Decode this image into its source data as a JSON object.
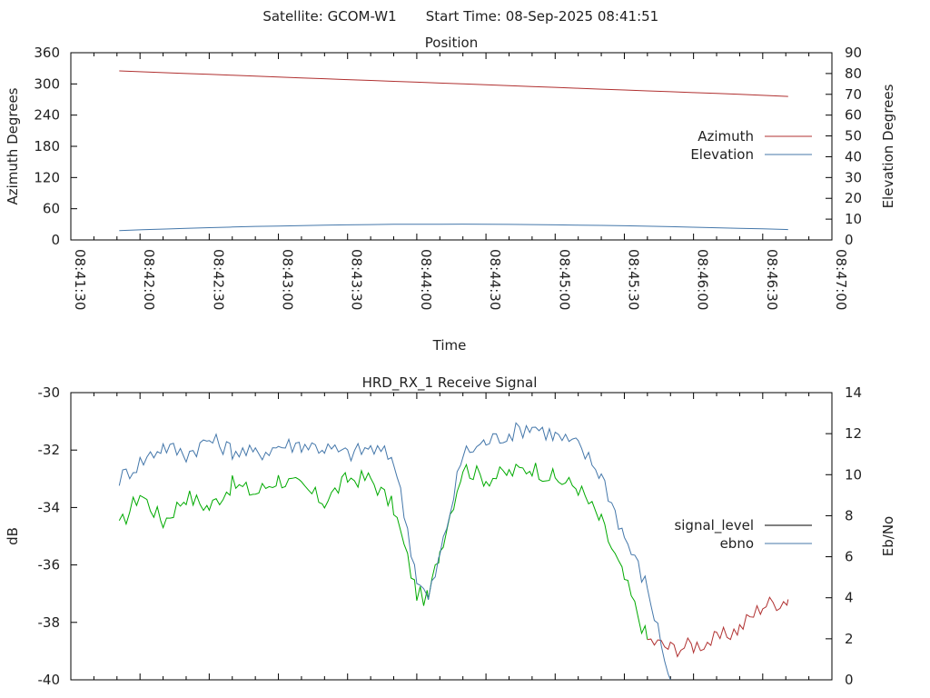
{
  "header": {
    "satellite": "Satellite: GCOM-W1",
    "start_time": "Start Time: 08-Sep-2025 08:41:51"
  },
  "chart_data": [
    {
      "type": "line",
      "title": "Position",
      "xlabel": "Time",
      "ylabel": "Azimuth Degrees",
      "y2label": "Elevation Degrees",
      "x_ticks": [
        "08:41:30",
        "08:42:00",
        "08:42:30",
        "08:43:00",
        "08:43:30",
        "08:44:00",
        "08:44:30",
        "08:45:00",
        "08:45:30",
        "08:46:00",
        "08:46:30",
        "08:47:00"
      ],
      "xlim": [
        "08:41:30",
        "08:47:00"
      ],
      "ylim": [
        0,
        360
      ],
      "y_ticks": [
        0,
        60,
        120,
        180,
        240,
        300,
        360
      ],
      "y2lim": [
        0,
        90
      ],
      "y2_ticks": [
        0,
        10,
        20,
        30,
        40,
        50,
        60,
        70,
        80,
        90
      ],
      "legend_position": "right",
      "series": [
        {
          "name": "Azimuth",
          "axis": "y",
          "color": "#b03030",
          "x": [
            "08:41:51",
            "08:42:20",
            "08:42:50",
            "08:43:20",
            "08:43:50",
            "08:44:20",
            "08:44:50",
            "08:45:20",
            "08:45:50",
            "08:46:20",
            "08:46:41"
          ],
          "y": [
            325,
            320,
            315,
            310,
            305,
            300,
            295,
            290,
            285,
            280,
            276
          ]
        },
        {
          "name": "Elevation",
          "axis": "y2",
          "color": "#4477aa",
          "x": [
            "08:41:51",
            "08:42:20",
            "08:42:50",
            "08:43:20",
            "08:43:50",
            "08:44:20",
            "08:44:50",
            "08:45:20",
            "08:45:50",
            "08:46:20",
            "08:46:41"
          ],
          "y": [
            4.5,
            5.6,
            6.5,
            7.1,
            7.5,
            7.6,
            7.4,
            7.0,
            6.4,
            5.6,
            5.0
          ]
        }
      ]
    },
    {
      "type": "line",
      "title": "HRD_RX_1 Receive Signal",
      "xlabel": "",
      "ylabel": "dB",
      "y2label": "Eb/No",
      "xlim": [
        "08:41:30",
        "08:47:00"
      ],
      "ylim": [
        -40,
        -30
      ],
      "y_ticks": [
        -40,
        -38,
        -36,
        -34,
        -32,
        -30
      ],
      "y2lim": [
        0,
        14
      ],
      "y2_ticks": [
        0,
        2,
        4,
        6,
        8,
        10,
        12,
        14
      ],
      "legend_position": "right",
      "legend": [
        {
          "name": "signal_level",
          "color": "#000000"
        },
        {
          "name": "ebno",
          "color": "#4477aa"
        }
      ],
      "series": [
        {
          "name": "signal_level",
          "axis": "y",
          "color": "#00aa00",
          "color_below_lock": "#b03030",
          "x": [
            "08:41:51",
            "08:42:00",
            "08:42:10",
            "08:42:20",
            "08:42:30",
            "08:42:40",
            "08:42:50",
            "08:43:00",
            "08:43:10",
            "08:43:20",
            "08:43:30",
            "08:43:40",
            "08:43:50",
            "08:44:00",
            "08:44:05",
            "08:44:10",
            "08:44:20",
            "08:44:30",
            "08:44:40",
            "08:44:50",
            "08:45:00",
            "08:45:10",
            "08:45:20",
            "08:45:30",
            "08:45:40",
            "08:45:50",
            "08:46:00",
            "08:46:10",
            "08:46:20",
            "08:46:30",
            "08:46:41"
          ],
          "y": [
            -34.7,
            -33.5,
            -34.5,
            -33.6,
            -34.0,
            -33.2,
            -33.5,
            -33.0,
            -33.3,
            -33.8,
            -33.0,
            -33.0,
            -34.0,
            -37.0,
            -37.2,
            -35.5,
            -32.6,
            -33.0,
            -32.8,
            -32.6,
            -33.0,
            -33.3,
            -34.5,
            -36.5,
            -38.6,
            -38.9,
            -38.8,
            -38.6,
            -38.2,
            -37.4,
            -37.2
          ]
        },
        {
          "name": "ebno",
          "axis": "y2",
          "color": "#4477aa",
          "x": [
            "08:41:51",
            "08:42:00",
            "08:42:10",
            "08:42:20",
            "08:42:30",
            "08:42:40",
            "08:42:50",
            "08:43:00",
            "08:43:10",
            "08:43:20",
            "08:43:30",
            "08:43:40",
            "08:43:50",
            "08:44:00",
            "08:44:05",
            "08:44:10",
            "08:44:20",
            "08:44:30",
            "08:44:40",
            "08:44:50",
            "08:45:00",
            "08:45:10",
            "08:45:20",
            "08:45:30",
            "08:45:40",
            "08:45:50"
          ],
          "y": [
            9.8,
            10.6,
            11.4,
            11.0,
            11.7,
            11.2,
            11.0,
            11.4,
            11.5,
            11.3,
            11.0,
            11.3,
            10.8,
            5.0,
            3.9,
            6.0,
            11.0,
            11.6,
            12.0,
            12.4,
            11.9,
            11.4,
            10.0,
            7.0,
            4.5,
            0.0
          ]
        }
      ]
    }
  ]
}
